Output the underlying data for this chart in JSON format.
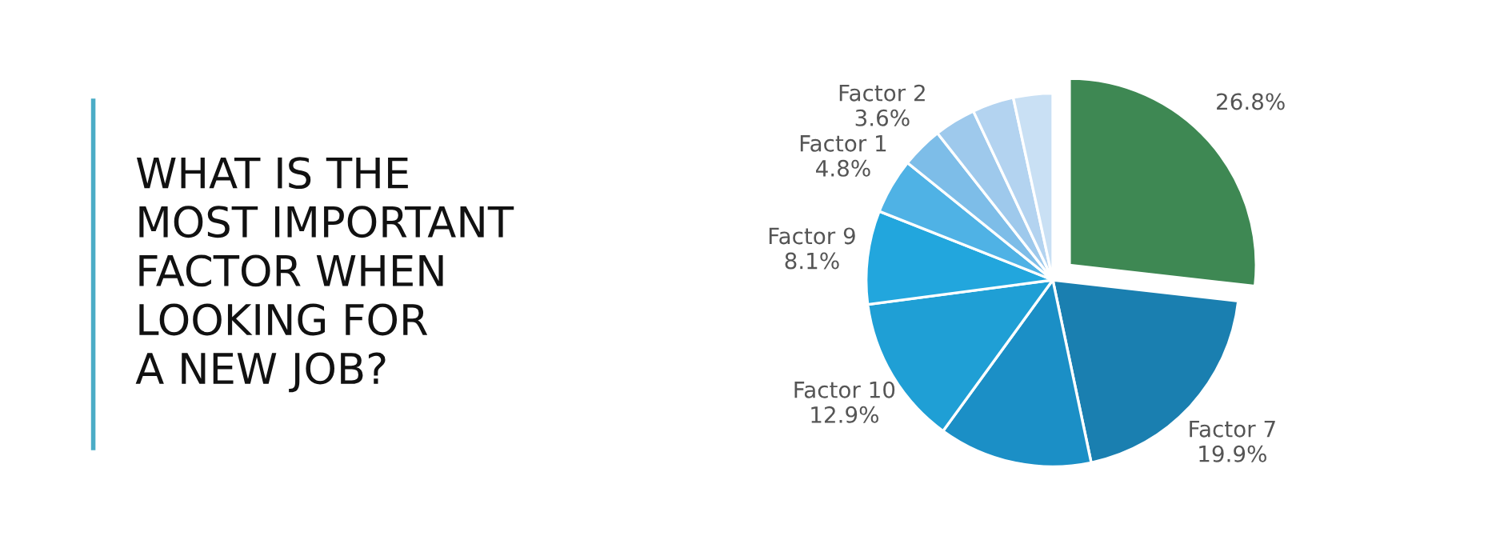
{
  "chart_data": {
    "type": "pie",
    "title": "WHAT IS THE\nMOST IMPORTANT\nFACTOR WHEN\nLOOKING FOR\nA NEW JOB?",
    "categories": [
      null,
      "Factor 7",
      null,
      "Factor 10",
      "Factor 9",
      "Factor 1",
      "Factor 2",
      null,
      null,
      null
    ],
    "values": [
      26.8,
      19.9,
      13.3,
      12.9,
      8.1,
      4.8,
      3.6,
      3.6,
      3.6,
      3.4
    ],
    "value_labels": [
      "26.8%",
      "19.9%",
      null,
      "12.9%",
      "8.1%",
      "4.8%",
      "3.6%",
      null,
      null,
      null
    ],
    "colors": [
      "#3e8853",
      "#1a7fb0",
      "#1b8fc6",
      "#1f9fd5",
      "#22a6dd",
      "#4fb2e5",
      "#7dbde8",
      "#9ec9ec",
      "#b3d3f0",
      "#c9e0f4"
    ],
    "legend": false
  }
}
